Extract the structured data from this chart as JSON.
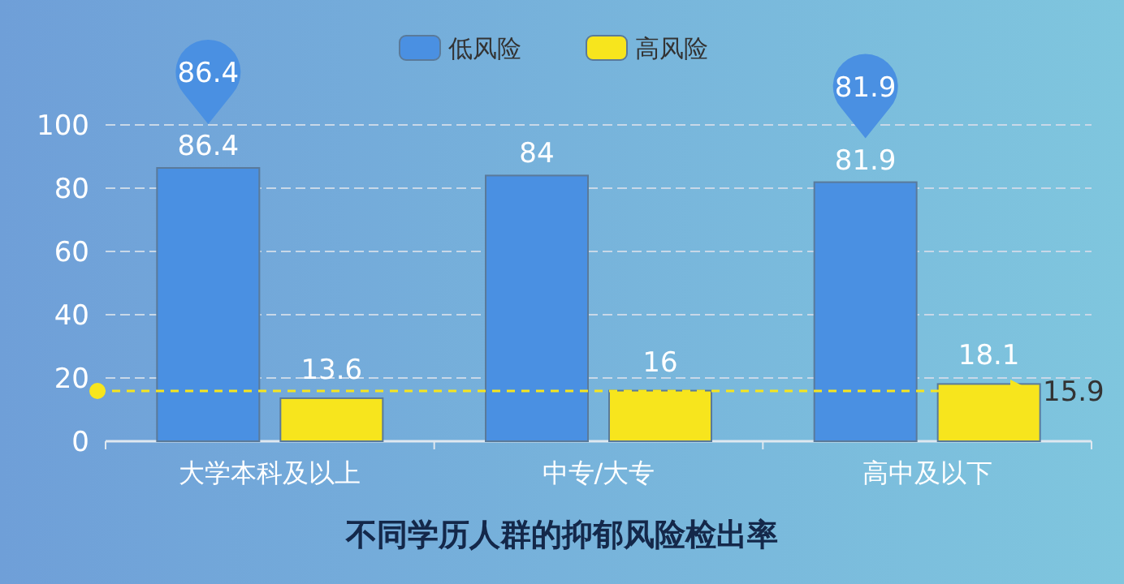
{
  "chart_data": {
    "type": "bar",
    "title": "不同学历人群的抑郁风险检出率",
    "categories": [
      "大学本科及以上",
      "中专/大专",
      "高中及以下"
    ],
    "series": [
      {
        "name": "低风险",
        "color": "#4a90e2",
        "values": [
          86.4,
          84,
          81.9
        ]
      },
      {
        "name": "高风险",
        "color": "#f7e51d",
        "values": [
          13.6,
          16,
          18.1
        ]
      }
    ],
    "ylim": [
      0,
      100
    ],
    "yticks": [
      0,
      20,
      40,
      60,
      80,
      100
    ],
    "grid": "y",
    "legend": "top",
    "data_labels": true,
    "annotations": [
      "86.4",
      "81.9"
    ],
    "ref_lines": [
      {
        "axis": "y",
        "value": 15.9,
        "label": "15.9",
        "color": "#f7e51d",
        "line_style": "dashed"
      }
    ]
  }
}
